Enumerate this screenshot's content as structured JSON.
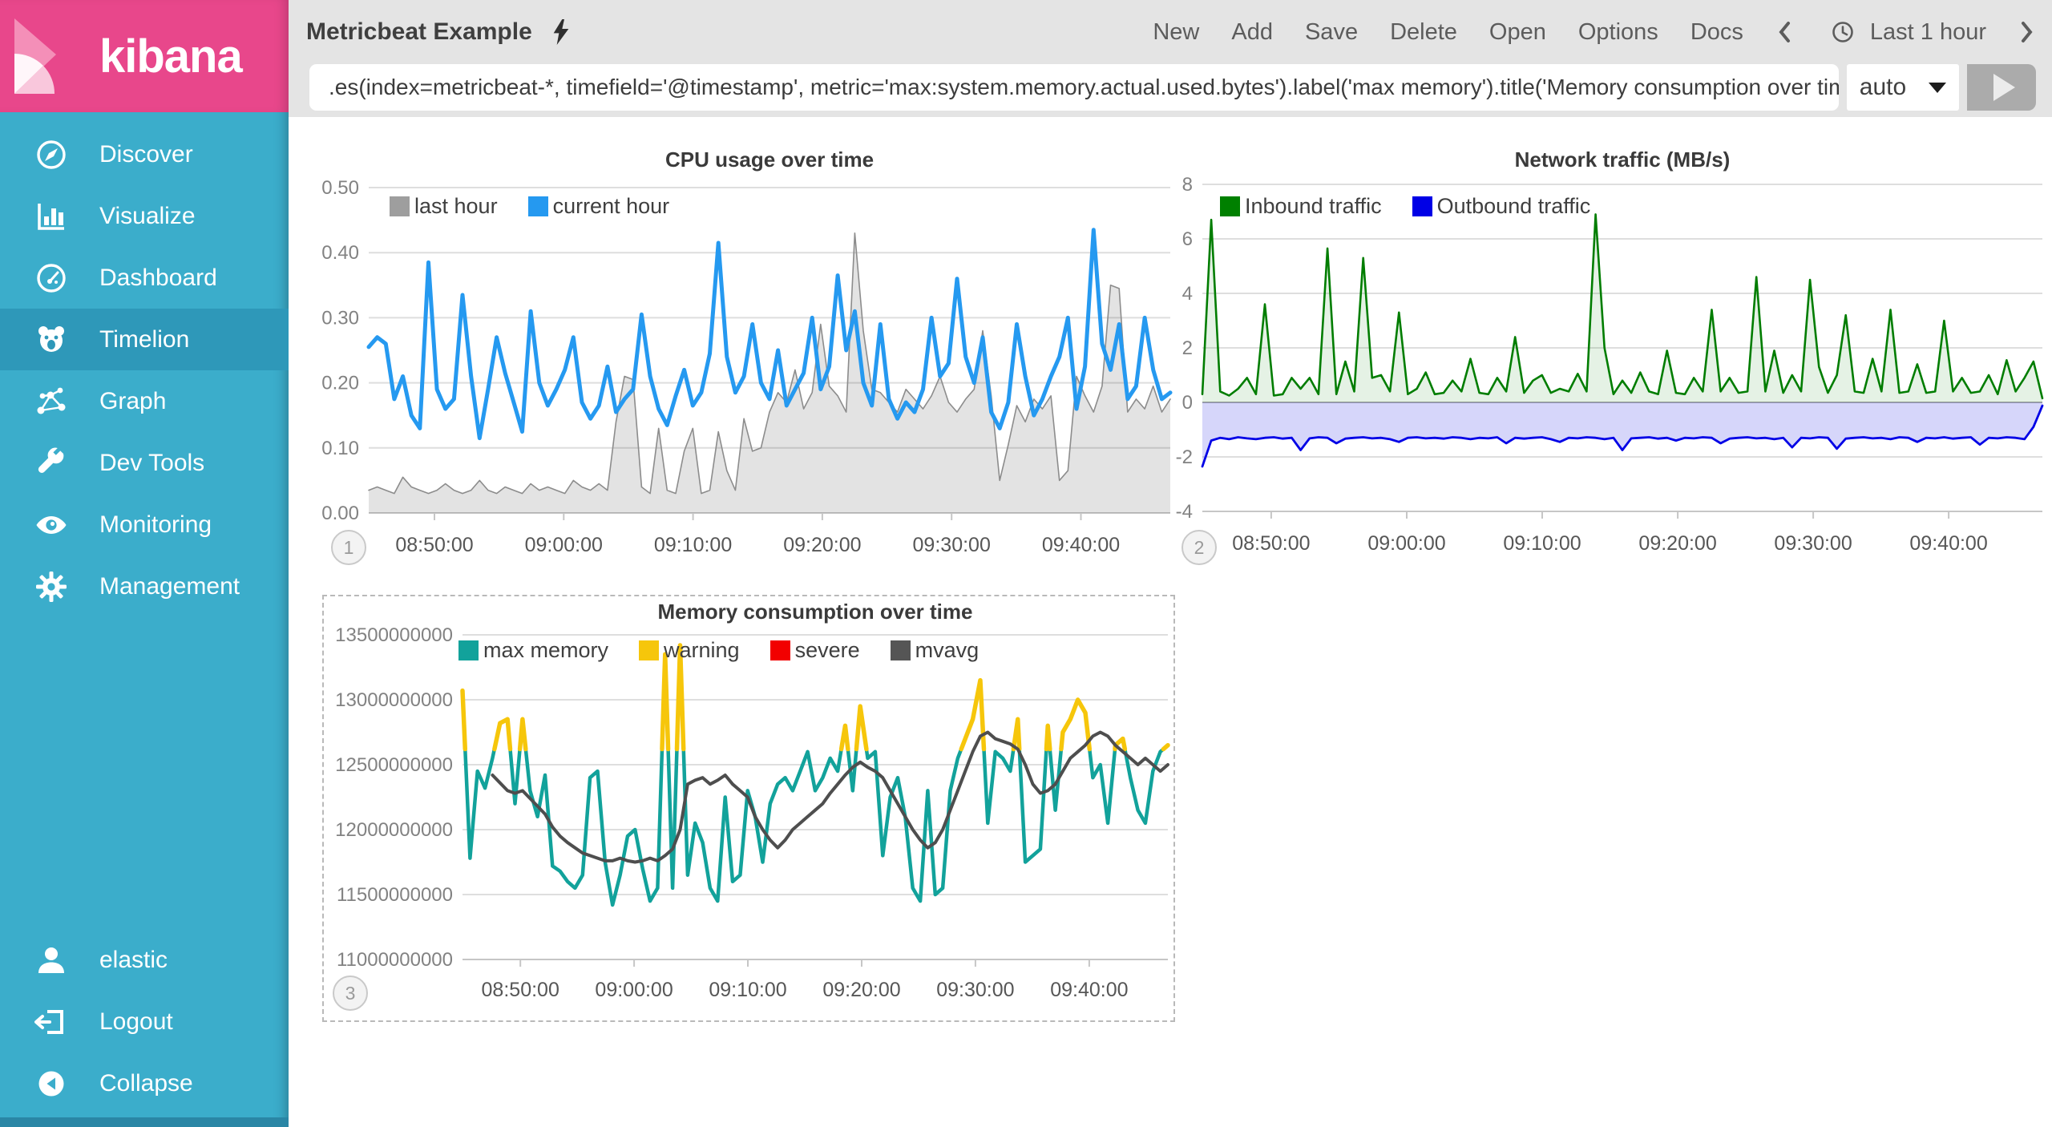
{
  "sidebar": {
    "logo_text": "kibana",
    "items": [
      {
        "label": "Discover",
        "icon": "compass-icon",
        "selected": false
      },
      {
        "label": "Visualize",
        "icon": "bar-chart-icon",
        "selected": false
      },
      {
        "label": "Dashboard",
        "icon": "gauge-icon",
        "selected": false
      },
      {
        "label": "Timelion",
        "icon": "timelion-icon",
        "selected": true
      },
      {
        "label": "Graph",
        "icon": "graph-icon",
        "selected": false
      },
      {
        "label": "Dev Tools",
        "icon": "wrench-icon",
        "selected": false
      },
      {
        "label": "Monitoring",
        "icon": "eye-icon",
        "selected": false
      },
      {
        "label": "Management",
        "icon": "gear-icon",
        "selected": false
      }
    ],
    "footer_items": [
      {
        "label": "elastic",
        "icon": "user-icon"
      },
      {
        "label": "Logout",
        "icon": "logout-icon"
      },
      {
        "label": "Collapse",
        "icon": "collapse-icon"
      }
    ],
    "colors": {
      "header": "#e8478b",
      "background": "#3badcb",
      "selected": "#2e98b9"
    }
  },
  "topbar": {
    "title": "Metricbeat Example",
    "title_icon": "lightning-icon",
    "menu": [
      "New",
      "Add",
      "Save",
      "Delete",
      "Open",
      "Options",
      "Docs"
    ],
    "time_label": "Last 1 hour"
  },
  "querybar": {
    "query": ".es(index=metricbeat-*, timefield='@timestamp', metric='max:system.memory.actual.used.bytes').label('max memory').title('Memory consumption over time')",
    "interval": "auto"
  },
  "chart_data": [
    {
      "id": "cpu",
      "type": "line",
      "badge": "1",
      "title": "CPU usage over time",
      "ylim": [
        0,
        0.5
      ],
      "yticks": [
        {
          "value": 0.5,
          "label": "0.50"
        },
        {
          "value": 0.4,
          "label": "0.40"
        },
        {
          "value": 0.3,
          "label": "0.30"
        },
        {
          "value": 0.2,
          "label": "0.20"
        },
        {
          "value": 0.1,
          "label": "0.10"
        },
        {
          "value": 0.0,
          "label": "0.00"
        }
      ],
      "xticks": [
        {
          "pos": 0.082,
          "label": "08:50:00"
        },
        {
          "pos": 0.2433,
          "label": "09:00:00"
        },
        {
          "pos": 0.4046,
          "label": "09:10:00"
        },
        {
          "pos": 0.5659,
          "label": "09:20:00"
        },
        {
          "pos": 0.7272,
          "label": "09:30:00"
        },
        {
          "pos": 0.8885,
          "label": "09:40:00"
        }
      ],
      "legend": [
        {
          "label": "last hour",
          "color": "#9e9e9e"
        },
        {
          "label": "current hour",
          "color": "#2599f0"
        }
      ],
      "series": [
        {
          "name": "last hour",
          "color": "#8c8c8c",
          "width": 1.6,
          "fill": "rgba(0,0,0,0.11)",
          "base": 0,
          "values": [
            0.035,
            0.04,
            0.035,
            0.03,
            0.055,
            0.04,
            0.035,
            0.03,
            0.035,
            0.045,
            0.035,
            0.03,
            0.035,
            0.05,
            0.035,
            0.03,
            0.04,
            0.035,
            0.03,
            0.045,
            0.035,
            0.04,
            0.035,
            0.03,
            0.05,
            0.04,
            0.035,
            0.045,
            0.035,
            0.14,
            0.21,
            0.205,
            0.04,
            0.03,
            0.13,
            0.035,
            0.03,
            0.095,
            0.13,
            0.03,
            0.035,
            0.125,
            0.065,
            0.035,
            0.145,
            0.095,
            0.1,
            0.155,
            0.185,
            0.17,
            0.22,
            0.16,
            0.185,
            0.29,
            0.195,
            0.18,
            0.155,
            0.43,
            0.28,
            0.19,
            0.185,
            0.17,
            0.155,
            0.19,
            0.175,
            0.16,
            0.18,
            0.21,
            0.17,
            0.155,
            0.175,
            0.19,
            0.28,
            0.18,
            0.05,
            0.105,
            0.165,
            0.14,
            0.175,
            0.16,
            0.18,
            0.05,
            0.065,
            0.21,
            0.18,
            0.155,
            0.195,
            0.35,
            0.345,
            0.155,
            0.175,
            0.16,
            0.195,
            0.155,
            0.175
          ]
        },
        {
          "name": "current hour",
          "color": "#2599f0",
          "width": 5,
          "values": [
            0.255,
            0.27,
            0.26,
            0.175,
            0.21,
            0.15,
            0.13,
            0.385,
            0.19,
            0.16,
            0.175,
            0.335,
            0.21,
            0.115,
            0.19,
            0.27,
            0.215,
            0.17,
            0.125,
            0.31,
            0.2,
            0.165,
            0.19,
            0.22,
            0.27,
            0.17,
            0.145,
            0.165,
            0.225,
            0.155,
            0.175,
            0.19,
            0.305,
            0.21,
            0.16,
            0.135,
            0.18,
            0.22,
            0.165,
            0.185,
            0.245,
            0.415,
            0.24,
            0.185,
            0.21,
            0.29,
            0.2,
            0.175,
            0.25,
            0.165,
            0.19,
            0.215,
            0.3,
            0.19,
            0.225,
            0.365,
            0.25,
            0.31,
            0.2,
            0.165,
            0.29,
            0.175,
            0.145,
            0.17,
            0.155,
            0.19,
            0.3,
            0.21,
            0.23,
            0.36,
            0.24,
            0.2,
            0.27,
            0.155,
            0.13,
            0.17,
            0.29,
            0.21,
            0.15,
            0.175,
            0.21,
            0.24,
            0.3,
            0.16,
            0.225,
            0.435,
            0.26,
            0.22,
            0.29,
            0.175,
            0.195,
            0.3,
            0.22,
            0.175,
            0.185
          ]
        }
      ]
    },
    {
      "id": "net",
      "type": "area",
      "badge": "2",
      "title": "Network traffic (MB/s)",
      "ylim": [
        -4,
        8
      ],
      "yticks": [
        {
          "value": 8,
          "label": "8"
        },
        {
          "value": 6,
          "label": "6"
        },
        {
          "value": 4,
          "label": "4"
        },
        {
          "value": 2,
          "label": "2"
        },
        {
          "value": 0,
          "label": "0",
          "strong": true
        },
        {
          "value": -2,
          "label": "-2"
        },
        {
          "value": -4,
          "label": "-4"
        }
      ],
      "xticks": [
        {
          "pos": 0.082,
          "label": "08:50:00"
        },
        {
          "pos": 0.2433,
          "label": "09:00:00"
        },
        {
          "pos": 0.4046,
          "label": "09:10:00"
        },
        {
          "pos": 0.5659,
          "label": "09:20:00"
        },
        {
          "pos": 0.7272,
          "label": "09:30:00"
        },
        {
          "pos": 0.8885,
          "label": "09:40:00"
        }
      ],
      "legend": [
        {
          "label": "Inbound traffic",
          "color": "#008000"
        },
        {
          "label": "Outbound traffic",
          "color": "#0000e6"
        }
      ],
      "series": [
        {
          "name": "Inbound traffic",
          "color": "#007d00",
          "width": 2.6,
          "fill": "rgba(0,128,0,0.10)",
          "base": 0,
          "values": [
            0.3,
            6.7,
            0.4,
            0.25,
            0.5,
            0.9,
            0.3,
            3.6,
            0.25,
            0.3,
            0.9,
            0.5,
            0.9,
            0.3,
            5.65,
            0.3,
            1.5,
            0.4,
            5.3,
            0.9,
            1.0,
            0.4,
            3.3,
            0.3,
            0.5,
            1.1,
            0.3,
            0.35,
            0.8,
            0.4,
            1.6,
            0.35,
            0.3,
            0.9,
            0.4,
            2.4,
            0.35,
            0.8,
            1.0,
            0.35,
            0.5,
            0.4,
            1.05,
            0.4,
            6.9,
            2.0,
            0.3,
            0.8,
            0.35,
            1.1,
            0.4,
            0.3,
            1.9,
            0.35,
            0.3,
            0.9,
            0.4,
            3.4,
            0.4,
            0.9,
            0.35,
            0.4,
            4.6,
            0.4,
            1.9,
            0.35,
            1.0,
            0.4,
            4.5,
            1.3,
            0.35,
            1.0,
            3.2,
            0.4,
            0.35,
            1.6,
            0.4,
            3.4,
            0.35,
            0.4,
            1.4,
            0.35,
            0.4,
            3.0,
            0.4,
            0.9,
            0.35,
            0.4,
            1.0,
            0.3,
            1.55,
            0.4,
            0.9,
            1.5,
            0.15
          ]
        },
        {
          "name": "Outbound traffic",
          "color": "#0000e6",
          "width": 2.8,
          "fill": "rgba(70,70,230,0.22)",
          "base": 0,
          "values": [
            -2.35,
            -1.4,
            -1.3,
            -1.35,
            -1.28,
            -1.32,
            -1.35,
            -1.3,
            -1.28,
            -1.33,
            -1.3,
            -1.75,
            -1.32,
            -1.28,
            -1.3,
            -1.5,
            -1.33,
            -1.3,
            -1.28,
            -1.32,
            -1.3,
            -1.35,
            -1.45,
            -1.3,
            -1.28,
            -1.32,
            -1.3,
            -1.33,
            -1.28,
            -1.3,
            -1.35,
            -1.3,
            -1.32,
            -1.28,
            -1.5,
            -1.3,
            -1.33,
            -1.3,
            -1.28,
            -1.35,
            -1.45,
            -1.3,
            -1.32,
            -1.28,
            -1.3,
            -1.35,
            -1.3,
            -1.75,
            -1.32,
            -1.3,
            -1.28,
            -1.33,
            -1.3,
            -1.4,
            -1.3,
            -1.32,
            -1.28,
            -1.3,
            -1.5,
            -1.33,
            -1.3,
            -1.28,
            -1.32,
            -1.3,
            -1.35,
            -1.3,
            -1.65,
            -1.3,
            -1.32,
            -1.28,
            -1.3,
            -1.7,
            -1.33,
            -1.3,
            -1.28,
            -1.32,
            -1.3,
            -1.35,
            -1.28,
            -1.3,
            -1.45,
            -1.3,
            -1.32,
            -1.28,
            -1.33,
            -1.3,
            -1.28,
            -1.55,
            -1.3,
            -1.32,
            -1.28,
            -1.3,
            -1.35,
            -0.9,
            -0.12
          ]
        }
      ]
    },
    {
      "id": "mem",
      "type": "line",
      "badge": "3",
      "selected_panel": true,
      "title": "Memory consumption over time",
      "ylim": [
        11000000000,
        13500000000
      ],
      "yticks": [
        {
          "value": 13500000000,
          "label": "13500000000"
        },
        {
          "value": 13000000000,
          "label": "13000000000"
        },
        {
          "value": 12500000000,
          "label": "12500000000"
        },
        {
          "value": 12000000000,
          "label": "12000000000"
        },
        {
          "value": 11500000000,
          "label": "11500000000"
        },
        {
          "value": 11000000000,
          "label": "11000000000"
        }
      ],
      "xticks": [
        {
          "pos": 0.082,
          "label": "08:50:00"
        },
        {
          "pos": 0.2433,
          "label": "09:00:00"
        },
        {
          "pos": 0.4046,
          "label": "09:10:00"
        },
        {
          "pos": 0.5659,
          "label": "09:20:00"
        },
        {
          "pos": 0.7272,
          "label": "09:30:00"
        },
        {
          "pos": 0.8885,
          "label": "09:40:00"
        }
      ],
      "legend": [
        {
          "label": "max memory",
          "color": "#12a29b"
        },
        {
          "label": "warning",
          "color": "#f6c60b"
        },
        {
          "label": "severe",
          "color": "#f20000"
        },
        {
          "label": "mvavg",
          "color": "#555555"
        }
      ],
      "series": [
        {
          "name": "max memory",
          "color": "#12a29b",
          "width": 4.5,
          "values": [
            13070000000,
            11780000000,
            12450000000,
            12320000000,
            12550000000,
            12820000000,
            12850000000,
            12200000000,
            12850000000,
            12300000000,
            12100000000,
            12420000000,
            11720000000,
            11680000000,
            11600000000,
            11550000000,
            11650000000,
            12400000000,
            12450000000,
            11750000000,
            11420000000,
            11650000000,
            11950000000,
            12000000000,
            11700000000,
            11450000000,
            11550000000,
            13350000000,
            11550000000,
            13420000000,
            11650000000,
            12050000000,
            11900000000,
            11550000000,
            11450000000,
            12250000000,
            11600000000,
            11650000000,
            12300000000,
            12100000000,
            11750000000,
            12200000000,
            12350000000,
            12400000000,
            12300000000,
            12450000000,
            12600000000,
            12300000000,
            12400000000,
            12550000000,
            12450000000,
            12800000000,
            12300000000,
            12950000000,
            12550000000,
            12600000000,
            11800000000,
            12250000000,
            12400000000,
            12100000000,
            11550000000,
            11450000000,
            12300000000,
            11500000000,
            11550000000,
            12300000000,
            12550000000,
            12700000000,
            12850000000,
            13150000000,
            12050000000,
            12600000000,
            12550000000,
            12450000000,
            12850000000,
            11750000000,
            11800000000,
            11850000000,
            12800000000,
            12150000000,
            12750000000,
            12850000000,
            13000000000,
            12900000000,
            12400000000,
            12500000000,
            12050000000,
            12650000000,
            12700000000,
            12400000000,
            12150000000,
            12050000000,
            12450000000,
            12600000000,
            12650000000
          ]
        },
        {
          "name": "warning",
          "type": "threshold",
          "source": 0,
          "threshold": 12620000000,
          "color": "#f6c60b",
          "width": 5.5
        },
        {
          "name": "severe",
          "type": "threshold",
          "source": 0,
          "threshold": 13800000000,
          "color": "#f20000",
          "width": 5.5
        },
        {
          "name": "mvavg",
          "color": "#4e4e4e",
          "width": 4,
          "values": [
            null,
            null,
            null,
            null,
            12420000000,
            12360000000,
            12300000000,
            12280000000,
            12300000000,
            12240000000,
            12180000000,
            12120000000,
            12020000000,
            11950000000,
            11900000000,
            11860000000,
            11820000000,
            11800000000,
            11780000000,
            11760000000,
            11760000000,
            11780000000,
            11760000000,
            11750000000,
            11760000000,
            11780000000,
            11760000000,
            11800000000,
            11850000000,
            12000000000,
            12350000000,
            12380000000,
            12400000000,
            12350000000,
            12380000000,
            12420000000,
            12350000000,
            12300000000,
            12250000000,
            12100000000,
            12000000000,
            11920000000,
            11860000000,
            11920000000,
            12000000000,
            12050000000,
            12100000000,
            12150000000,
            12200000000,
            12280000000,
            12350000000,
            12420000000,
            12480000000,
            12520000000,
            12480000000,
            12450000000,
            12400000000,
            12300000000,
            12200000000,
            12100000000,
            12000000000,
            11920000000,
            11860000000,
            11900000000,
            12000000000,
            12150000000,
            12300000000,
            12450000000,
            12600000000,
            12720000000,
            12750000000,
            12700000000,
            12680000000,
            12660000000,
            12620000000,
            12500000000,
            12350000000,
            12280000000,
            12300000000,
            12350000000,
            12450000000,
            12550000000,
            12600000000,
            12650000000,
            12720000000,
            12750000000,
            12720000000,
            12650000000,
            12600000000,
            12550000000,
            12500000000,
            12550000000,
            12500000000,
            12450000000,
            12500000000
          ]
        }
      ]
    }
  ]
}
